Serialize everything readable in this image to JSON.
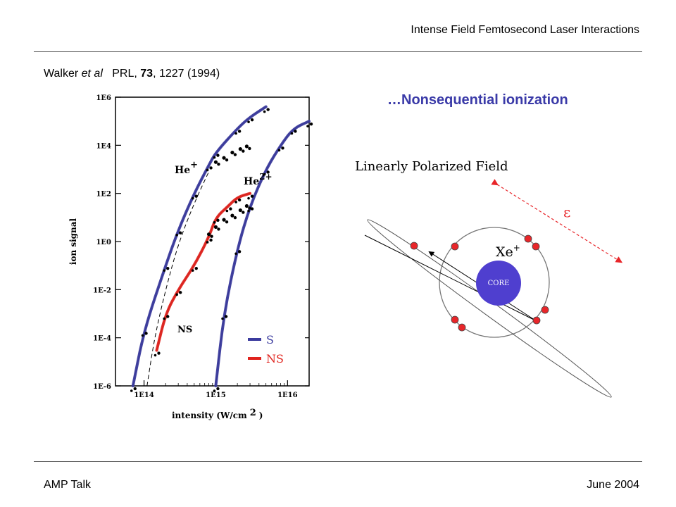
{
  "header": {
    "title": "Intense Field Femtosecond Laser Interactions"
  },
  "citation": {
    "authors": "Walker",
    "etal": "et al",
    "journal": "PRL,",
    "volume": "73",
    "pages_year": ", 1227 (1994)"
  },
  "section_title": "…Nonsequential ionization",
  "footer": {
    "left": "AMP Talk",
    "right": "June 2004"
  },
  "colors": {
    "sequential": "#3b3b9e",
    "nonsequential": "#e0231d",
    "title": "#3a3aa8",
    "electron": "#e8262a"
  },
  "chart_data": {
    "type": "line",
    "xlabel": "intensity (W/cm",
    "xlabel_sup": "2",
    "xlabel_end": ")",
    "ylabel": "ion signal",
    "x_scale": "log",
    "y_scale": "log",
    "xlim": [
      40000000000000.0,
      2e+16
    ],
    "ylim": [
      1e-06,
      1000000.0
    ],
    "x_ticks": [
      "1E14",
      "1E15",
      "1E16"
    ],
    "y_ticks": [
      "1E-6",
      "1E-4",
      "1E-2",
      "1E0",
      "1E2",
      "1E4",
      "1E6"
    ],
    "annotations": {
      "he_plus": "He",
      "he_plus_sup": "+",
      "he_2plus": "He",
      "he_2plus_sup": "2+",
      "ns": "NS"
    },
    "legend": {
      "s": "S",
      "ns": "NS"
    },
    "series": [
      {
        "name": "S",
        "x": [
          70000000000000.0,
          100000000000000.0,
          200000000000000.0,
          300000000000000.0,
          500000000000000.0,
          800000000000000.0,
          1000000000000000.0,
          2000000000000000.0,
          3000000000000000.0,
          5000000000000000.0
        ],
        "y": [
          1e-06,
          0.0002,
          0.1,
          3,
          100,
          1500,
          5000,
          50000,
          150000,
          400000
        ]
      },
      {
        "name": "S",
        "x": [
          1000000000000000.0,
          1300000000000000.0,
          2000000000000000.0,
          3000000000000000.0,
          5000000000000000.0,
          8000000000000000.0,
          1.2e+16,
          2e+16
        ],
        "y": [
          1e-06,
          0.001,
          0.5,
          30,
          1000,
          10000,
          50000,
          100000
        ]
      },
      {
        "name": "NS",
        "x": [
          150000000000000.0,
          200000000000000.0,
          300000000000000.0,
          500000000000000.0,
          800000000000000.0,
          1000000000000000.0,
          1500000000000000.0,
          2000000000000000.0,
          3000000000000000.0
        ],
        "y": [
          3e-05,
          0.001,
          0.01,
          0.1,
          1.5,
          10,
          30,
          70,
          100
        ]
      }
    ]
  },
  "diagram": {
    "title": "Linearly Polarized Field",
    "epsilon": "ε",
    "ion": "Xe",
    "ion_sup": "+",
    "core": "CORE"
  }
}
